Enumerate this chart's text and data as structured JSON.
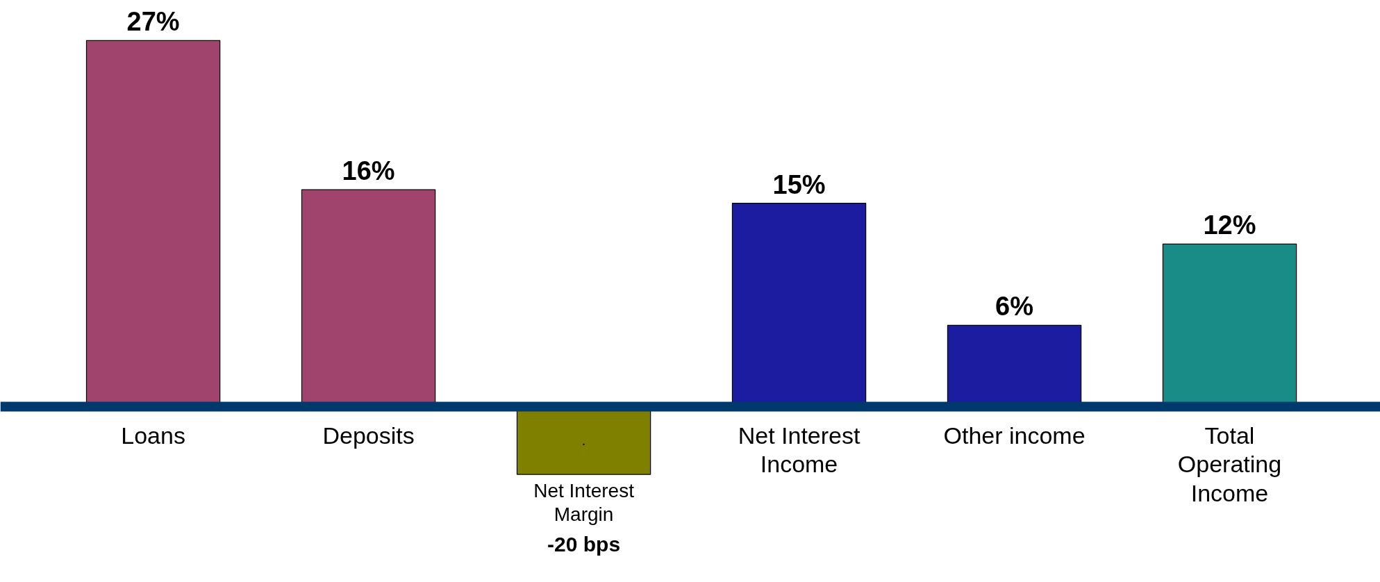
{
  "chart_data": {
    "type": "bar",
    "categories": [
      "Loans",
      "Deposits",
      "Net Interest Margin",
      "Net Interest Income",
      "Other income",
      "Total Operating Income"
    ],
    "values": [
      27,
      16,
      -5,
      15,
      6,
      12
    ],
    "colors": [
      "#a0446e",
      "#a0446e",
      "#808000",
      "#1c1ca0",
      "#1c1ca0",
      "#1a8c88"
    ],
    "value_labels": [
      "27%",
      "16%",
      null,
      "15%",
      "6%",
      "12%"
    ],
    "annotations": [
      ".",
      {
        "text": "-20 bps",
        "x": "Net Interest Margin",
        "y": -5
      }
    ],
    "grid": false
  }
}
